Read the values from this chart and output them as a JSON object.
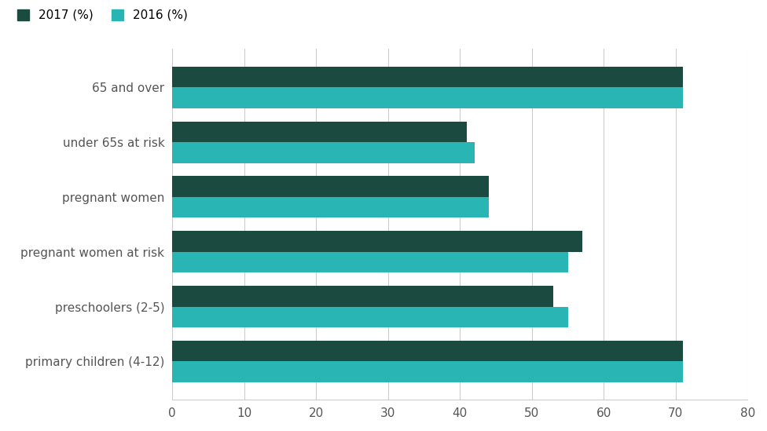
{
  "categories": [
    "primary children (4-12)",
    "preschoolers (2-5)",
    "pregnant women at risk",
    "pregnant women",
    "under 65s at risk",
    "65 and over"
  ],
  "values_2017": [
    71,
    53,
    57,
    44,
    41,
    71
  ],
  "values_2016": [
    71,
    55,
    55,
    44,
    42,
    71
  ],
  "color_2017": "#1a4a40",
  "color_2016": "#2ab5b5",
  "legend_labels": [
    "2017 (%)",
    "2016 (%)"
  ],
  "xlim": [
    0,
    80
  ],
  "xticks": [
    0,
    10,
    20,
    30,
    40,
    50,
    60,
    70,
    80
  ],
  "bar_height": 0.38,
  "background_color": "#ffffff",
  "grid_color": "#cccccc",
  "tick_label_fontsize": 11,
  "legend_fontsize": 11,
  "category_fontsize": 11
}
